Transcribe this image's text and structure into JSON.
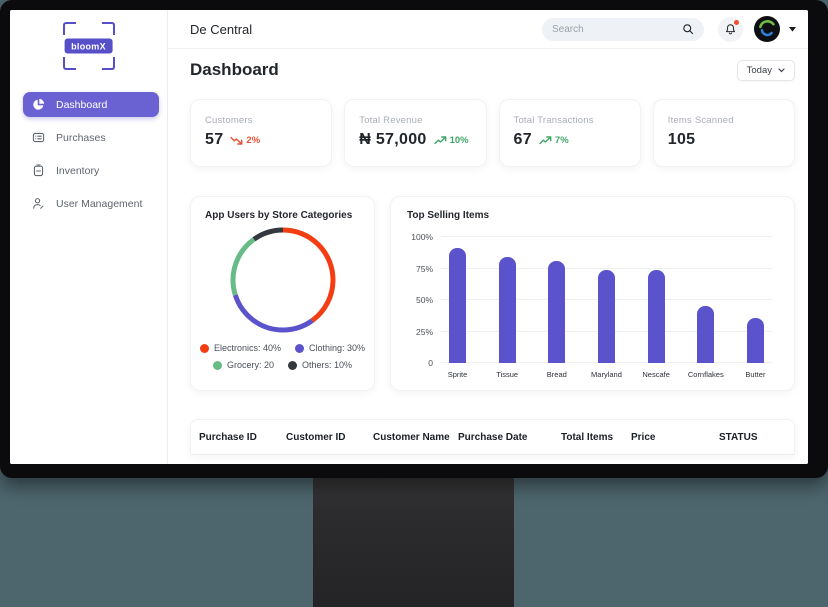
{
  "scene": {
    "desk_background": "#4D666E"
  },
  "brand": {
    "name": "bloomX"
  },
  "header": {
    "title": "De Central",
    "search_placeholder": "Search"
  },
  "sidebar": {
    "items": [
      {
        "label": "Dashboard",
        "icon": "pie",
        "active": true
      },
      {
        "label": "Purchases",
        "icon": "card",
        "active": false
      },
      {
        "label": "Inventory",
        "icon": "clipboard",
        "active": false
      },
      {
        "label": "User Management",
        "icon": "user",
        "active": false
      }
    ]
  },
  "page": {
    "title": "Dashboard",
    "period_label": "Today"
  },
  "stats": [
    {
      "label": "Customers",
      "value": "57",
      "trend": "2%",
      "direction": "down"
    },
    {
      "label": "Total Revenue",
      "value": "₦ 57,000",
      "trend": "10%",
      "direction": "up"
    },
    {
      "label": "Total Transactions",
      "value": "67",
      "trend": "7%",
      "direction": "up"
    },
    {
      "label": "Items Scanned",
      "value": "105",
      "trend": null,
      "direction": null
    }
  ],
  "chart_data": [
    {
      "type": "pie",
      "variant": "donut",
      "title": "App Users by Store Categories",
      "labels": [
        "Electronics",
        "Clothing",
        "Grocery",
        "Others"
      ],
      "values": [
        40,
        30,
        20,
        10
      ],
      "legend_labels": [
        "Electronics: 40%",
        "Clothing: 30%",
        "Grocery: 20",
        "Others: 10%"
      ],
      "colors": [
        "#F43D12",
        "#5B53CC",
        "#66BB87",
        "#34383F"
      ],
      "start_angle_deg": -90,
      "direction": "clockwise",
      "legend_position": "bottom"
    },
    {
      "type": "bar",
      "title": "Top Selling Items",
      "categories": [
        "Sprite",
        "Tissue",
        "Bread",
        "Maryland",
        "Nescafe",
        "Cornflakes",
        "Butter"
      ],
      "values": [
        91,
        84,
        81,
        74,
        74,
        45,
        36
      ],
      "ylim": [
        0,
        100
      ],
      "ytick_labels": [
        "0",
        "25%",
        "50%",
        "75%",
        "100%"
      ],
      "bar_color": "#5B53CC",
      "grid": true,
      "legend_position": "none"
    }
  ],
  "table": {
    "columns": [
      "Purchase ID",
      "Customer ID",
      "Customer Name",
      "Purchase Date",
      "Total Items",
      "Price",
      "STATUS"
    ]
  },
  "colors": {
    "accent": "#6A61D2",
    "trend_up": "#41A567",
    "trend_down": "#EA4F35",
    "notification_dot": "#F4502E"
  }
}
